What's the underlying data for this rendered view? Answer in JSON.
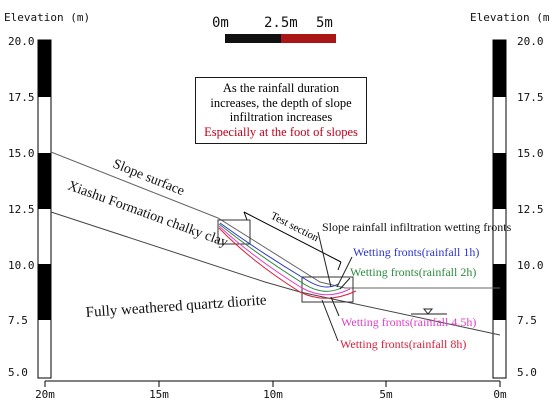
{
  "axes": {
    "y_title_left": "Elevation (m)",
    "y_title_right": "Elevation (m)",
    "y_ticks": [
      "20.0",
      "17.5",
      "15.0",
      "12.5",
      "10.0",
      "7.5",
      "5.0"
    ],
    "x_ticks": [
      "20m",
      "15m",
      "10m",
      "5m",
      "0m"
    ]
  },
  "scale_bar": {
    "labels": [
      "0m",
      "2.5m",
      "5m"
    ],
    "colors": [
      "#111111",
      "#aa1515"
    ]
  },
  "note": {
    "line1": "As the rainfall duration",
    "line2": "increases, the depth of slope",
    "line3": "infiltration increases",
    "highlight": "Especially at the foot of slopes"
  },
  "labels": {
    "slope_surface": "Slope surface",
    "chalky_clay": "Xiashu Formation chalky clay",
    "quartz_diorite": "Fully weathered quartz diorite",
    "test_section": "Test section",
    "wetting_fronts_title": "Slope rainfall infiltration wetting fronts"
  },
  "wetting_fronts": [
    {
      "label": "Wetting fronts(rainfall 1h)",
      "color": "#2b36c8"
    },
    {
      "label": "Wetting fronts(rainfall 2h)",
      "color": "#2e8b3e"
    },
    {
      "label": "Wetting fronts(rainfall 4.5h)",
      "color": "#e040c8"
    },
    {
      "label": "Wetting fronts(rainfall 8h)",
      "color": "#d8203a"
    }
  ]
}
